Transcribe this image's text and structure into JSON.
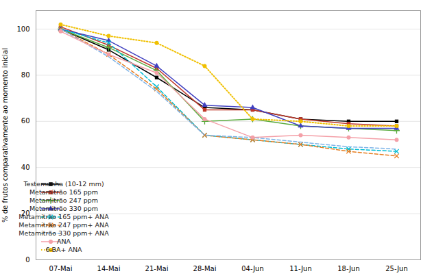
{
  "chart_data": {
    "type": "line",
    "categories": [
      "07-Mai",
      "14-Mai",
      "21-Mai",
      "28-Mai",
      "04-Jun",
      "11-Jun",
      "18-Jun",
      "25-Jun"
    ],
    "series": [
      {
        "name": "Testemunha (10-12 mm)",
        "color": "#000000",
        "marker": "square",
        "line_style": "solid",
        "values": [
          100,
          91,
          79,
          66,
          65,
          61,
          60,
          60
        ]
      },
      {
        "name": "Metamitrão 165 ppm",
        "color": "#c0392b",
        "marker": "square",
        "line_style": "solid",
        "values": [
          101,
          93,
          83,
          65,
          65,
          61,
          59,
          58
        ]
      },
      {
        "name": "Metamitrão 247 ppm",
        "color": "#5aab3e",
        "marker": "plus",
        "line_style": "solid",
        "values": [
          100,
          92,
          82,
          60,
          61,
          58,
          57,
          56
        ]
      },
      {
        "name": "Metamitrão 330 ppm",
        "color": "#4040c0",
        "marker": "triangle",
        "line_style": "solid",
        "values": [
          100,
          95,
          84,
          67,
          66,
          58,
          57,
          57
        ]
      },
      {
        "name": "Metamitrão 165 ppm+ ANA",
        "color": "#00bcd4",
        "marker": "x",
        "line_style": "dashed",
        "values": [
          100,
          94,
          75,
          54,
          52,
          50,
          48,
          47
        ]
      },
      {
        "name": "Metamitrão 247 ppm+ ANA",
        "color": "#e67e22",
        "marker": "x",
        "line_style": "dashed",
        "values": [
          100,
          89,
          74,
          54,
          52,
          50,
          47,
          45
        ]
      },
      {
        "name": "Metamitrão 330 ppm+ ANA",
        "color": "#7eb4e8",
        "marker": "none",
        "line_style": "dashed",
        "values": [
          100,
          88,
          73,
          54,
          53,
          51,
          49,
          48
        ]
      },
      {
        "name": "ANA",
        "color": "#f4a0a8",
        "marker": "circle",
        "line_style": "solid",
        "values": [
          99,
          89,
          81,
          61,
          53,
          54,
          53,
          52
        ]
      },
      {
        "name": "6-BA+ ANA",
        "color": "#f0c000",
        "marker": "circle",
        "line_style": "dotted",
        "values": [
          102,
          97,
          94,
          84,
          61,
          60,
          58,
          58
        ]
      }
    ],
    "ylabel": "% de frutos comparativamente ao momento inicial",
    "ylim": [
      0,
      108
    ],
    "yticks": [
      0,
      20,
      40,
      60,
      80,
      100
    ],
    "grid": true,
    "legend": "lower left"
  }
}
